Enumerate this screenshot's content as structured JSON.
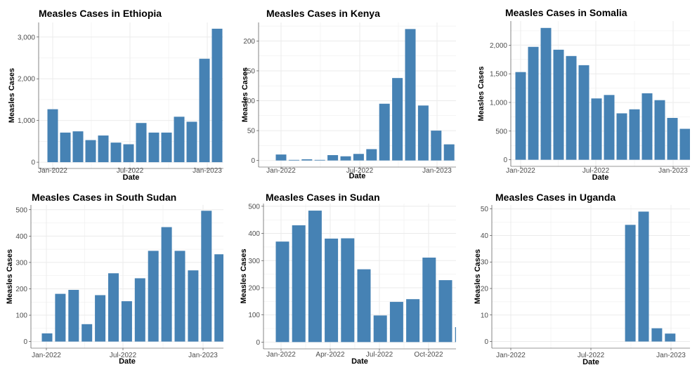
{
  "colors": {
    "bar": "#4682b4",
    "grid": "#ebebeb",
    "axis_line": "#333333"
  },
  "chart_data": [
    {
      "type": "bar",
      "title": "Measles Cases in Ethiopia",
      "xlabel": "Date",
      "ylabel": "Measles Cases",
      "x_ticks": [
        "Jan-2022",
        "Jul-2022",
        "Jan-2023"
      ],
      "y_ticks": [
        "0",
        "1,000",
        "2,000",
        "3,000"
      ],
      "ylim": [
        -150,
        3350
      ],
      "grid": true,
      "categories": [
        "2021-12",
        "2022-01",
        "2022-02",
        "2022-03",
        "2022-04",
        "2022-05",
        "2022-06",
        "2022-07",
        "2022-08",
        "2022-09",
        "2022-10",
        "2022-11",
        "2022-12",
        "2023-01"
      ],
      "values": [
        1270,
        710,
        740,
        530,
        640,
        470,
        430,
        940,
        710,
        710,
        1090,
        970,
        2480,
        3200
      ]
    },
    {
      "type": "bar",
      "title": "Measles Cases in Kenya",
      "xlabel": "Date",
      "ylabel": "Measles Cases",
      "x_ticks": [
        "Jan-2022",
        "Jul-2022",
        "Jan-2023"
      ],
      "y_ticks": [
        "0",
        "50",
        "100",
        "150",
        "200"
      ],
      "ylim": [
        -11,
        231
      ],
      "grid": true,
      "categories": [
        "2021-12",
        "2022-01",
        "2022-02",
        "2022-03",
        "2022-04",
        "2022-05",
        "2022-06",
        "2022-07",
        "2022-08",
        "2022-09",
        "2022-10",
        "2022-11",
        "2022-12",
        "2023-01"
      ],
      "values": [
        10,
        1,
        2,
        1,
        9,
        7,
        11,
        19,
        95,
        138,
        220,
        92,
        50,
        27
      ]
    },
    {
      "type": "bar",
      "title": "Measles Cases in Somalia",
      "xlabel": "Date",
      "ylabel": "Measles Cases",
      "x_ticks": [
        "Jan-2022",
        "Jul-2022",
        "Jan-2023"
      ],
      "y_ticks": [
        "0",
        "500",
        "1,000",
        "1,500",
        "2,000"
      ],
      "ylim": [
        -115,
        2420
      ],
      "grid": true,
      "categories": [
        "2021-12",
        "2022-01",
        "2022-02",
        "2022-03",
        "2022-04",
        "2022-05",
        "2022-06",
        "2022-07",
        "2022-08",
        "2022-09",
        "2022-10",
        "2022-11",
        "2022-12",
        "2023-01"
      ],
      "values": [
        1530,
        1970,
        2300,
        1920,
        1810,
        1650,
        1070,
        1130,
        810,
        880,
        1160,
        1040,
        730,
        540
      ]
    },
    {
      "type": "bar",
      "title": "Measles Cases in South Sudan",
      "xlabel": "Date",
      "ylabel": "Measles Cases",
      "x_ticks": [
        "Jan-2022",
        "Jul-2022",
        "Jan-2023"
      ],
      "y_ticks": [
        "0",
        "100",
        "200",
        "300",
        "400",
        "500"
      ],
      "ylim": [
        -25,
        518
      ],
      "grid": true,
      "categories": [
        "2021-12",
        "2022-01",
        "2022-02",
        "2022-03",
        "2022-04",
        "2022-05",
        "2022-06",
        "2022-07",
        "2022-08",
        "2022-09",
        "2022-10",
        "2022-11",
        "2022-12",
        "2023-01"
      ],
      "values": [
        31,
        181,
        196,
        66,
        176,
        259,
        153,
        240,
        344,
        434,
        344,
        270,
        496,
        331
      ]
    },
    {
      "type": "bar",
      "title": "Measles Cases in Sudan",
      "xlabel": "Date",
      "ylabel": "Measles Cases",
      "x_ticks": [
        "Jan-2022",
        "Apr-2022",
        "Jul-2022",
        "Oct-2022"
      ],
      "y_ticks": [
        "0",
        "100",
        "200",
        "300",
        "400",
        "500"
      ],
      "ylim": [
        -25,
        510
      ],
      "grid": true,
      "categories": [
        "2021-12",
        "2022-01",
        "2022-02",
        "2022-03",
        "2022-04",
        "2022-05",
        "2022-06",
        "2022-07",
        "2022-08",
        "2022-09",
        "2022-10",
        "2022-11",
        "2022-12"
      ],
      "values": [
        370,
        430,
        484,
        381,
        382,
        268,
        98,
        148,
        158,
        311,
        228,
        55,
        0
      ]
    },
    {
      "type": "bar",
      "title": "Measles Cases in Uganda",
      "xlabel": "Date",
      "ylabel": "Measles Cases",
      "x_ticks": [
        "Jan-2022",
        "Jul-2022",
        "Jan-2023"
      ],
      "y_ticks": [
        "0",
        "10",
        "20",
        "30",
        "40",
        "50"
      ],
      "ylim": [
        -2.5,
        51.5
      ],
      "grid": true,
      "categories": [
        "2021-12",
        "2022-01",
        "2022-02",
        "2022-03",
        "2022-04",
        "2022-05",
        "2022-06",
        "2022-07",
        "2022-08",
        "2022-09",
        "2022-10",
        "2022-11",
        "2022-12",
        "2023-01"
      ],
      "values": [
        0,
        0,
        0,
        0,
        0,
        0,
        0,
        0,
        0,
        44,
        49,
        5,
        3,
        0
      ]
    }
  ]
}
